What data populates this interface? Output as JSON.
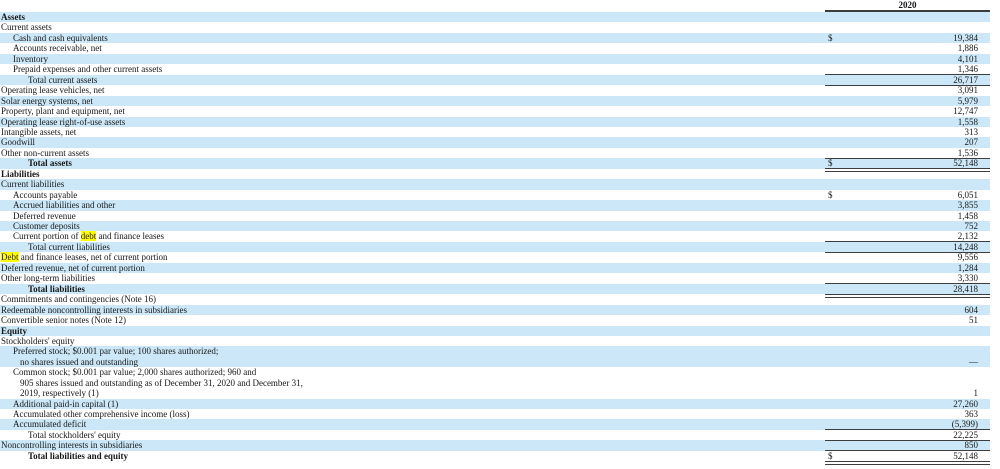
{
  "header": {
    "year": "2020"
  },
  "stripe_color": "#cce8f8",
  "highlight_color": "#ffff00",
  "currency_symbol": "$",
  "rows": [
    {
      "name": "section-assets",
      "lines": [
        "Assets"
      ],
      "indent": 0,
      "bold": true,
      "stripe": true
    },
    {
      "name": "row-current-assets",
      "lines": [
        "Current assets"
      ],
      "indent": 0,
      "stripe": false
    },
    {
      "name": "row-cash",
      "lines": [
        "Cash and cash equivalents"
      ],
      "indent": 1,
      "stripe": true,
      "dollar": "$",
      "value": "19,384"
    },
    {
      "name": "row-accounts-receivable",
      "lines": [
        "Accounts receivable, net"
      ],
      "indent": 1,
      "stripe": false,
      "value": "1,886"
    },
    {
      "name": "row-inventory",
      "lines": [
        "Inventory"
      ],
      "indent": 1,
      "stripe": true,
      "value": "4,101"
    },
    {
      "name": "row-prepaid-expenses",
      "lines": [
        "Prepaid expenses and other current assets"
      ],
      "indent": 1,
      "stripe": false,
      "value": "1,346"
    },
    {
      "name": "row-total-current-assets",
      "lines": [
        "Total current assets"
      ],
      "indent": 2,
      "stripe": true,
      "value": "26,717",
      "border": "tb"
    },
    {
      "name": "row-operating-lease-vehicles",
      "lines": [
        "Operating lease vehicles, net"
      ],
      "indent": 0,
      "stripe": false,
      "value": "3,091"
    },
    {
      "name": "row-solar-energy-systems",
      "lines": [
        "Solar energy systems, net"
      ],
      "indent": 0,
      "stripe": true,
      "value": "5,979"
    },
    {
      "name": "row-property-plant-equipment",
      "lines": [
        "Property, plant and equipment, net"
      ],
      "indent": 0,
      "stripe": false,
      "value": "12,747"
    },
    {
      "name": "row-operating-lease-rou",
      "lines": [
        "Operating lease right-of-use assets"
      ],
      "indent": 0,
      "stripe": true,
      "value": "1,558"
    },
    {
      "name": "row-intangible-assets",
      "lines": [
        "Intangible assets, net"
      ],
      "indent": 0,
      "stripe": false,
      "value": "313"
    },
    {
      "name": "row-goodwill",
      "lines": [
        "Goodwill"
      ],
      "indent": 0,
      "stripe": true,
      "value": "207"
    },
    {
      "name": "row-other-non-current-assets",
      "lines": [
        "Other non-current assets"
      ],
      "indent": 0,
      "stripe": false,
      "value": "1,536"
    },
    {
      "name": "row-total-assets",
      "lines": [
        "Total assets"
      ],
      "indent": 2,
      "bold": true,
      "stripe": true,
      "dollar": "$",
      "value": "52,148",
      "border": "tdbl"
    },
    {
      "name": "section-liabilities",
      "lines": [
        "Liabilities"
      ],
      "indent": 0,
      "bold": true,
      "stripe": false
    },
    {
      "name": "row-current-liabilities",
      "lines": [
        "Current liabilities"
      ],
      "indent": 0,
      "stripe": true
    },
    {
      "name": "row-accounts-payable",
      "lines": [
        "Accounts payable"
      ],
      "indent": 1,
      "stripe": false,
      "dollar": "$",
      "value": "6,051"
    },
    {
      "name": "row-accrued-liabilities",
      "lines": [
        "Accrued liabilities and other"
      ],
      "indent": 1,
      "stripe": true,
      "value": "3,855"
    },
    {
      "name": "row-deferred-revenue",
      "lines": [
        "Deferred revenue"
      ],
      "indent": 1,
      "stripe": false,
      "value": "1,458"
    },
    {
      "name": "row-customer-deposits",
      "lines": [
        "Customer deposits"
      ],
      "indent": 1,
      "stripe": true,
      "value": "752"
    },
    {
      "name": "row-current-portion-debt",
      "lines": [
        {
          "pre": "Current portion of ",
          "hl": "debt",
          "post": " and finance leases"
        }
      ],
      "indent": 1,
      "stripe": false,
      "value": "2,132"
    },
    {
      "name": "row-total-current-liabilities",
      "lines": [
        "Total current liabilities"
      ],
      "indent": 2,
      "stripe": true,
      "value": "14,248",
      "border": "tb"
    },
    {
      "name": "row-debt-finance-leases",
      "lines": [
        {
          "pre": "",
          "hl": "Debt",
          "post": " and finance leases, net of current portion"
        }
      ],
      "indent": 0,
      "stripe": false,
      "value": "9,556"
    },
    {
      "name": "row-deferred-revenue-noncurrent",
      "lines": [
        "Deferred revenue, net of current portion"
      ],
      "indent": 0,
      "stripe": true,
      "value": "1,284"
    },
    {
      "name": "row-other-long-term-liabilities",
      "lines": [
        "Other long-term liabilities"
      ],
      "indent": 0,
      "stripe": false,
      "value": "3,330"
    },
    {
      "name": "row-total-liabilities",
      "lines": [
        "Total liabilities"
      ],
      "indent": 2,
      "bold": true,
      "stripe": true,
      "value": "28,418",
      "border": "tdbl"
    },
    {
      "name": "row-commitments-contingencies",
      "lines": [
        "Commitments and contingencies (Note 16)"
      ],
      "indent": 0,
      "stripe": false
    },
    {
      "name": "row-redeemable-noncontrolling",
      "lines": [
        "Redeemable noncontrolling interests in subsidiaries"
      ],
      "indent": 0,
      "stripe": true,
      "value": "604"
    },
    {
      "name": "row-convertible-senior-notes",
      "lines": [
        "Convertible senior notes (Note 12)"
      ],
      "indent": 0,
      "stripe": false,
      "value": "51"
    },
    {
      "name": "section-equity",
      "lines": [
        "Equity"
      ],
      "indent": 0,
      "bold": true,
      "stripe": true
    },
    {
      "name": "row-stockholders-equity",
      "lines": [
        "Stockholders' equity"
      ],
      "indent": 0,
      "stripe": false
    },
    {
      "name": "row-preferred-stock",
      "lines": [
        "Preferred stock; $0.001 par value; 100 shares authorized;",
        "no shares issued and outstanding"
      ],
      "indent": 1,
      "stripe": true,
      "value": "—"
    },
    {
      "name": "row-common-stock",
      "lines": [
        "Common stock; $0.001 par value; 2,000 shares authorized; 960 and",
        "905 shares issued and outstanding as of December 31, 2020 and December 31,",
        "2019, respectively (1)"
      ],
      "indent": 1,
      "stripe": false,
      "value": "1"
    },
    {
      "name": "row-additional-paid-in-capital",
      "lines": [
        "Additional paid-in capital (1)"
      ],
      "indent": 1,
      "stripe": true,
      "value": "27,260"
    },
    {
      "name": "row-accumulated-oci",
      "lines": [
        "Accumulated other comprehensive income (loss)"
      ],
      "indent": 1,
      "stripe": false,
      "value": "363"
    },
    {
      "name": "row-accumulated-deficit",
      "lines": [
        "Accumulated deficit"
      ],
      "indent": 1,
      "stripe": true,
      "value": "(5,399)"
    },
    {
      "name": "row-total-stockholders-equity",
      "lines": [
        "Total stockholders' equity"
      ],
      "indent": 2,
      "stripe": false,
      "value": "22,225",
      "border": "tb"
    },
    {
      "name": "row-noncontrolling-interests",
      "lines": [
        "Noncontrolling interests in subsidiaries"
      ],
      "indent": 0,
      "stripe": true,
      "value": "850",
      "border": "b"
    },
    {
      "name": "row-total-liabilities-equity",
      "lines": [
        "Total liabilities and equity"
      ],
      "indent": 2,
      "bold": true,
      "stripe": false,
      "dollar": "$",
      "value": "52,148",
      "border": "dbl"
    }
  ]
}
